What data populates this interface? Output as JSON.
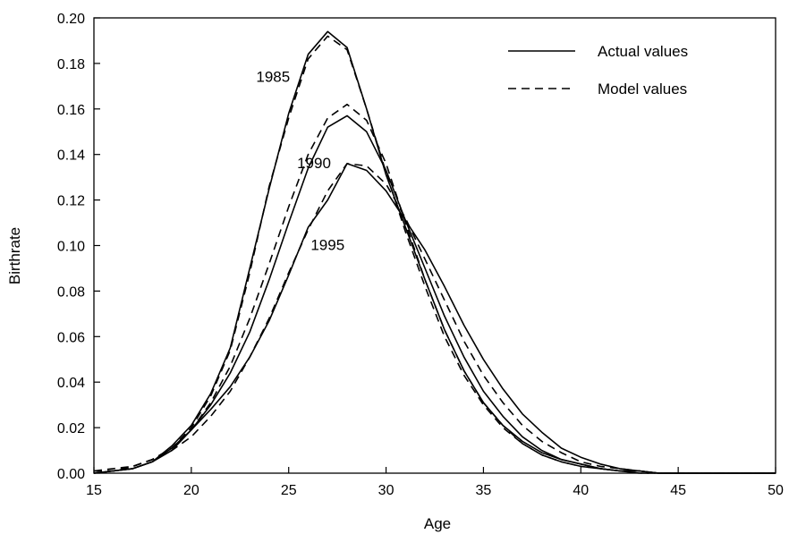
{
  "chart_data": {
    "type": "line",
    "title": "",
    "xlabel": "Age",
    "ylabel": "Birthrate",
    "xlim": [
      15,
      50
    ],
    "ylim": [
      0,
      0.2
    ],
    "x_ticks": [
      15,
      20,
      25,
      30,
      35,
      40,
      45,
      50
    ],
    "y_ticks": [
      "0.00",
      "0.02",
      "0.04",
      "0.06",
      "0.08",
      "0.10",
      "0.12",
      "0.14",
      "0.16",
      "0.18",
      "0.20"
    ],
    "grid": false,
    "legend_position": "top-right",
    "legend": [
      {
        "label": "Actual values",
        "style": "solid"
      },
      {
        "label": "Model values",
        "style": "dashed"
      }
    ],
    "annotations": [
      {
        "text": "1985",
        "near_x": 24.2,
        "near_y": 0.172
      },
      {
        "text": "1990",
        "near_x": 26.3,
        "near_y": 0.134
      },
      {
        "text": "1995",
        "near_x": 27.0,
        "near_y": 0.098
      }
    ],
    "x": [
      15,
      16,
      17,
      18,
      19,
      20,
      21,
      22,
      23,
      24,
      25,
      26,
      27,
      28,
      29,
      30,
      31,
      32,
      33,
      34,
      35,
      36,
      37,
      38,
      39,
      40,
      41,
      42,
      43,
      44,
      45,
      46,
      47,
      48,
      49,
      50
    ],
    "series": [
      {
        "year": "1985",
        "kind": "actual",
        "style": "solid",
        "values": [
          0.0,
          0.001,
          0.002,
          0.005,
          0.012,
          0.021,
          0.035,
          0.055,
          0.09,
          0.125,
          0.158,
          0.184,
          0.194,
          0.187,
          0.16,
          0.131,
          0.108,
          0.085,
          0.063,
          0.045,
          0.031,
          0.021,
          0.014,
          0.009,
          0.006,
          0.004,
          0.002,
          0.001,
          0.001,
          0.0,
          0.0,
          0.0,
          0.0,
          0.0,
          0.0,
          0.0
        ]
      },
      {
        "year": "1985",
        "kind": "model",
        "style": "dashed",
        "values": [
          0.001,
          0.002,
          0.003,
          0.006,
          0.011,
          0.02,
          0.034,
          0.054,
          0.088,
          0.126,
          0.156,
          0.182,
          0.192,
          0.186,
          0.16,
          0.132,
          0.106,
          0.082,
          0.06,
          0.043,
          0.03,
          0.02,
          0.013,
          0.008,
          0.005,
          0.003,
          0.002,
          0.001,
          0.0,
          0.0,
          0.0,
          0.0,
          0.0,
          0.0,
          0.0,
          0.0
        ]
      },
      {
        "year": "1990",
        "kind": "actual",
        "style": "solid",
        "values": [
          0.0,
          0.001,
          0.002,
          0.005,
          0.011,
          0.019,
          0.03,
          0.044,
          0.062,
          0.085,
          0.11,
          0.134,
          0.152,
          0.157,
          0.15,
          0.133,
          0.111,
          0.09,
          0.069,
          0.051,
          0.036,
          0.025,
          0.016,
          0.01,
          0.006,
          0.004,
          0.002,
          0.001,
          0.001,
          0.0,
          0.0,
          0.0,
          0.0,
          0.0,
          0.0,
          0.0
        ]
      },
      {
        "year": "1990",
        "kind": "model",
        "style": "dashed",
        "values": [
          0.001,
          0.001,
          0.003,
          0.006,
          0.011,
          0.019,
          0.031,
          0.047,
          0.068,
          0.092,
          0.117,
          0.14,
          0.156,
          0.162,
          0.155,
          0.136,
          0.11,
          0.085,
          0.063,
          0.045,
          0.031,
          0.021,
          0.013,
          0.008,
          0.005,
          0.003,
          0.002,
          0.001,
          0.0,
          0.0,
          0.0,
          0.0,
          0.0,
          0.0,
          0.0,
          0.0
        ]
      },
      {
        "year": "1995",
        "kind": "actual",
        "style": "solid",
        "values": [
          0.0,
          0.001,
          0.002,
          0.005,
          0.01,
          0.019,
          0.028,
          0.038,
          0.051,
          0.067,
          0.087,
          0.108,
          0.12,
          0.136,
          0.133,
          0.124,
          0.111,
          0.098,
          0.082,
          0.065,
          0.05,
          0.037,
          0.026,
          0.018,
          0.011,
          0.007,
          0.004,
          0.002,
          0.001,
          0.0,
          0.0,
          0.0,
          0.0,
          0.0,
          0.0,
          0.0
        ]
      },
      {
        "year": "1995",
        "kind": "model",
        "style": "dashed",
        "values": [
          0.001,
          0.001,
          0.003,
          0.006,
          0.01,
          0.016,
          0.025,
          0.036,
          0.051,
          0.068,
          0.088,
          0.107,
          0.124,
          0.136,
          0.135,
          0.127,
          0.112,
          0.094,
          0.076,
          0.058,
          0.043,
          0.031,
          0.021,
          0.014,
          0.009,
          0.005,
          0.003,
          0.002,
          0.001,
          0.0,
          0.0,
          0.0,
          0.0,
          0.0,
          0.0,
          0.0
        ]
      }
    ]
  }
}
